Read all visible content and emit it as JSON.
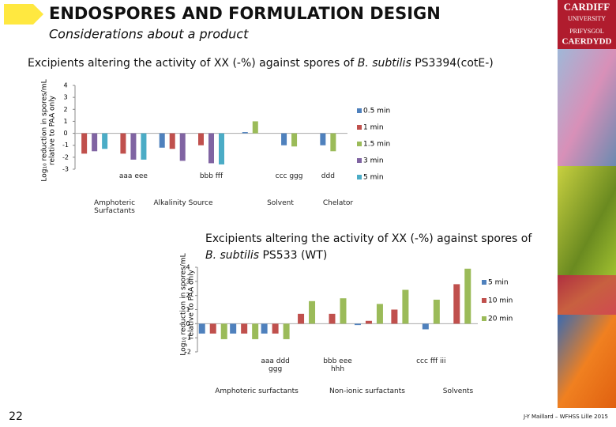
{
  "header": {
    "title": "ENDOSPORES AND FORMULATION DESIGN",
    "subtitle": "Considerations about a product"
  },
  "logo": {
    "line1": "CARDIFF",
    "line2": "UNIVERSITY",
    "line3": "PRIFYSGOL",
    "line4": "CAERDYDD"
  },
  "footer": {
    "page": "22",
    "credit": "J-Y Maillard – WFHSS Lille 2015"
  },
  "chart_data": [
    {
      "type": "bar",
      "title": "Excipients altering the activity of XX (-%) against spores of",
      "title_italic": "B. subtilis",
      "title_end": "PS3394(cotE-)",
      "ylabel": [
        "Log₁₀ reduction in spores/mL",
        "relative to PAA only"
      ],
      "categories": [
        null,
        "aaa eee",
        null,
        "bbb fff",
        null,
        "ccc ggg",
        "ddd"
      ],
      "group_labels": [
        "Amphoteric Surfactants",
        "Alkalinity Source",
        "Solvent",
        "Chelator"
      ],
      "series": [
        {
          "name": "0.5 min",
          "color": "#4f81bd",
          "values": [
            null,
            null,
            -1.2,
            null,
            0.1,
            -1.0,
            -1.0
          ]
        },
        {
          "name": "1 min",
          "color": "#c0504d",
          "values": [
            -1.7,
            -1.7,
            -1.3,
            -1.0,
            null,
            null,
            null
          ]
        },
        {
          "name": "1.5 min",
          "color": "#9bbb59",
          "values": [
            null,
            null,
            null,
            null,
            1.0,
            -1.1,
            -1.5
          ]
        },
        {
          "name": "3 min",
          "color": "#8064a2",
          "values": [
            -1.5,
            -2.2,
            -2.3,
            -2.5,
            null,
            null,
            null
          ]
        },
        {
          "name": "5 min",
          "color": "#4bacc6",
          "values": [
            -1.3,
            -2.2,
            null,
            -2.6,
            null,
            null,
            null
          ]
        }
      ],
      "ylim": [
        -3,
        4
      ],
      "yticks": [
        -3,
        -2,
        -1,
        0,
        1,
        2,
        3,
        4
      ]
    },
    {
      "type": "bar",
      "title": "Excipients altering the activity of XX (-%) against spores of",
      "title_italic": "B. subtilis",
      "title_end": "PS533 (WT)",
      "ylabel": [
        "Log₁₀ reduction in spores/mL",
        "relative to PAA only"
      ],
      "categories": [
        null,
        null,
        "aaa ddd ggg",
        null,
        "bbb eee hhh",
        null,
        null,
        "ccc fff iii",
        null
      ],
      "group_labels": [
        "Amphoteric surfactants",
        "Non-ionic surfactants",
        "Solvents"
      ],
      "series": [
        {
          "name": "5 min",
          "color": "#4f81bd",
          "values": [
            -0.7,
            -0.7,
            -0.7,
            null,
            null,
            -0.1,
            null,
            -0.4,
            null
          ]
        },
        {
          "name": "10 min",
          "color": "#c0504d",
          "values": [
            -0.7,
            -0.7,
            -0.7,
            0.7,
            0.7,
            0.2,
            1.0,
            null,
            2.8
          ]
        },
        {
          "name": "20 min",
          "color": "#9bbb59",
          "values": [
            -1.1,
            -1.1,
            -1.1,
            1.6,
            1.8,
            1.4,
            2.4,
            1.7,
            3.9
          ]
        }
      ],
      "ylim": [
        -2,
        4
      ],
      "yticks": [
        -2,
        -1,
        0,
        1,
        2,
        3,
        4
      ]
    }
  ]
}
